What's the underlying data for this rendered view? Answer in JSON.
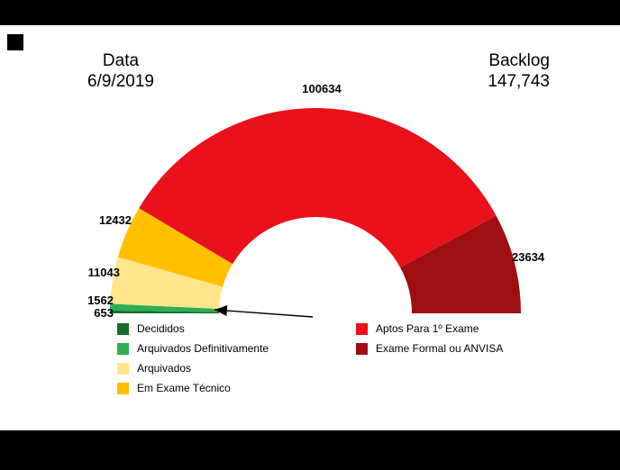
{
  "header": {
    "date_label": "Data",
    "date_value": "6/9/2019",
    "backlog_label": "Backlog",
    "backlog_value": "147,743"
  },
  "chart_data": {
    "type": "pie",
    "variant": "half-donut",
    "title": "",
    "legend_position": "bottom",
    "start_angle_deg": 180,
    "end_angle_deg": 0,
    "inner_radius_ratio": 0.47,
    "segments": [
      {
        "label": "Decididos",
        "value": 653,
        "color": "#156d2c"
      },
      {
        "label": "Arquivados Definitivamente",
        "value": 1562,
        "color": "#2fae53"
      },
      {
        "label": "Arquivados",
        "value": 11043,
        "color": "#ffe68e"
      },
      {
        "label": "Em Exame Técnico",
        "value": 12432,
        "color": "#ffc000"
      },
      {
        "label": "Aptos Para 1º Exame",
        "value": 100634,
        "color": "#e8111c"
      },
      {
        "label": "Exame Formal ou ANVISA",
        "value": 23634,
        "color": "#9d0f12"
      }
    ]
  }
}
